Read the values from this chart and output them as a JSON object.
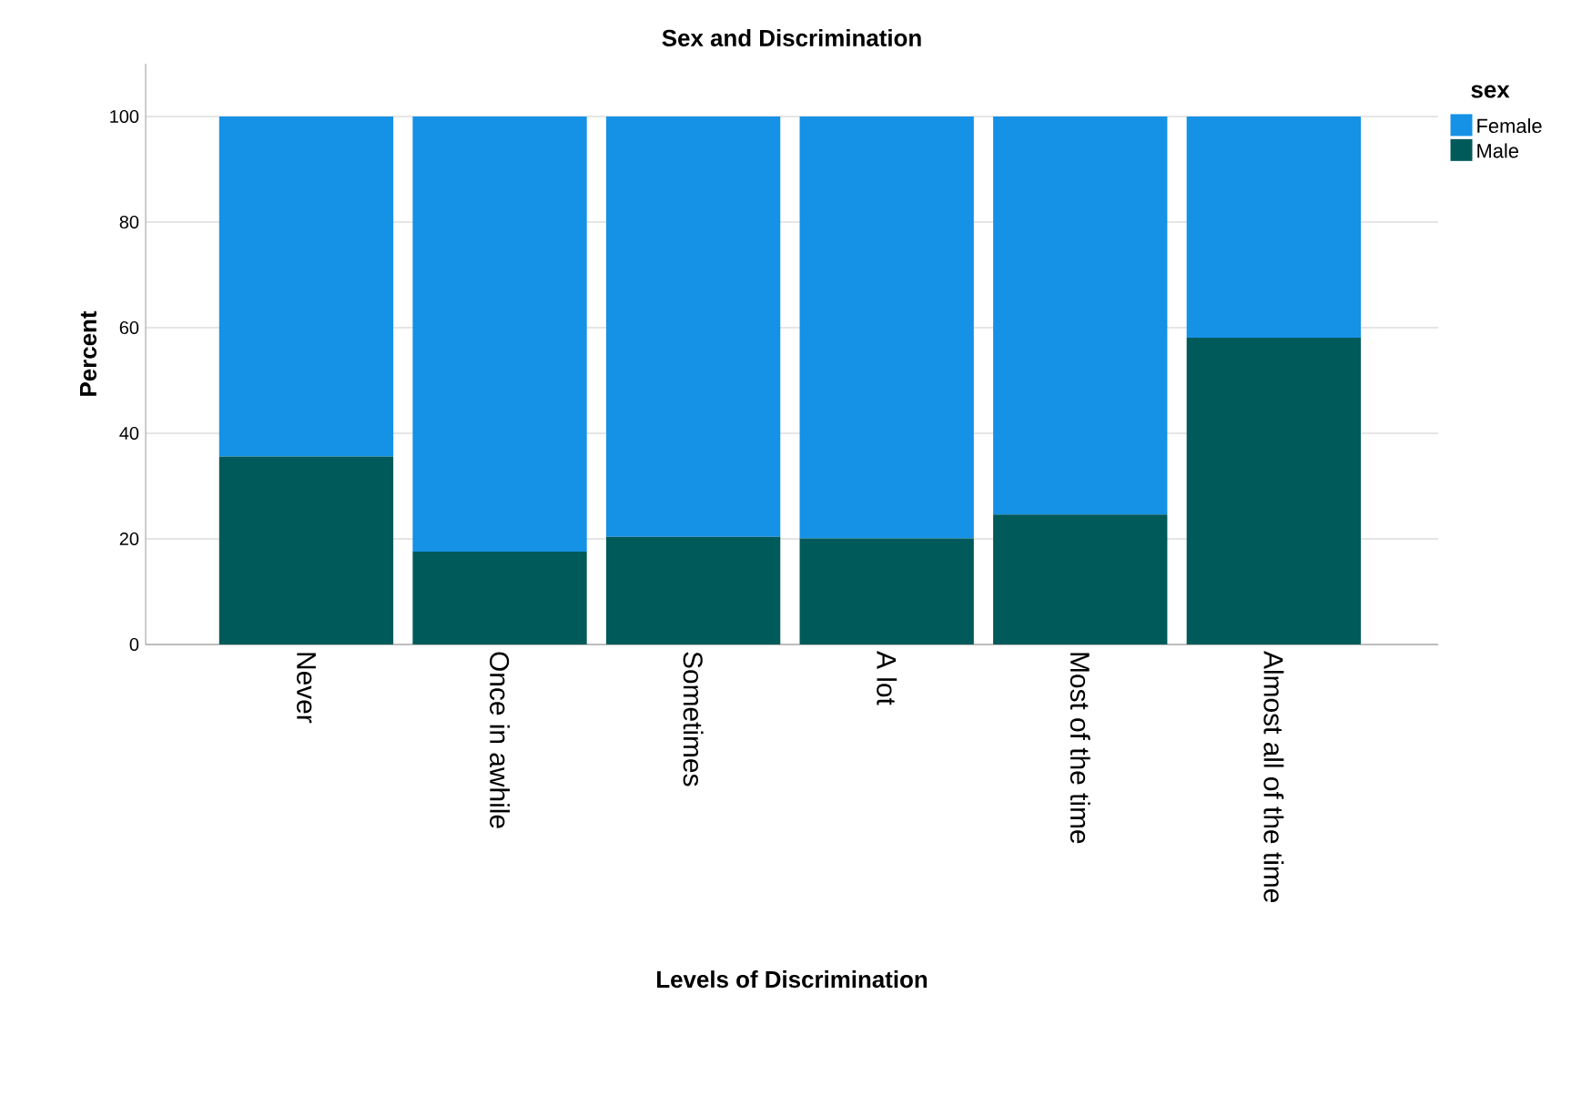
{
  "chart_data": {
    "type": "bar",
    "title": "Sex and Discrimination",
    "xlabel": "Levels of Discrimination",
    "ylabel": "Percent",
    "legend_title": "sex",
    "categories": [
      "Never",
      "Once in awhile",
      "Sometimes",
      "A lot",
      "Most of the time",
      "Almost all of the time"
    ],
    "stacked": true,
    "series": [
      {
        "name": "Male",
        "color": "#005a5a",
        "values": [
          35.6,
          17.6,
          20.4,
          20.1,
          24.6,
          58.1
        ]
      },
      {
        "name": "Female",
        "color": "#1591e6",
        "values": [
          64.4,
          82.4,
          79.6,
          79.9,
          75.4,
          41.9
        ]
      }
    ],
    "ylim": [
      0,
      110
    ],
    "yticks": [
      0,
      20,
      40,
      60,
      80,
      100
    ],
    "grid": "y",
    "legend": "right"
  }
}
